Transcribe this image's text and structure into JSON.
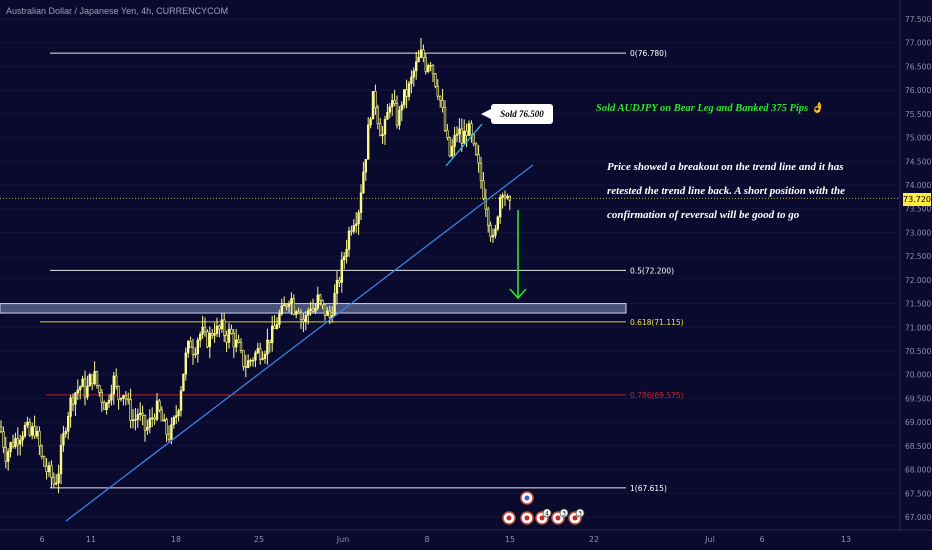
{
  "header": {
    "title": "Australian Dollar / Japanese Yen, 4h, CURRENCYCOM"
  },
  "annotations": {
    "green_note": "Sold AUDJPY on Bear Leg and Banked 375 Pips 👌",
    "callout": "Sold 76.500",
    "analysis": "Price showed a breakout on the trend line and it has retested the trend line back. A short position with the confirmation of reversal will be good to go"
  },
  "current_price": "73.720",
  "colors": {
    "background": "#0a0a2e",
    "candle_up": "#fafa8c",
    "candle_down": "#fafa8c",
    "trend_line": "#3f7fe0",
    "fib_white": "#ffffff",
    "fib_yellow": "#f0e442",
    "fib_red": "#c0282c",
    "arrow": "#29e629",
    "zone": "#9aaad8",
    "price_line": "#ffeb3b"
  },
  "chart_data": {
    "type": "candlestick",
    "symbol": "AUDJPY",
    "interval": "4h",
    "y_axis": {
      "range": [
        66.9,
        77.6
      ],
      "ticks": [
        "67.000",
        "67.500",
        "68.000",
        "68.500",
        "69.000",
        "69.500",
        "70.000",
        "70.500",
        "71.000",
        "71.500",
        "72.000",
        "72.500",
        "73.000",
        "73.500",
        "74.000",
        "74.500",
        "75.000",
        "75.500",
        "76.000",
        "76.500",
        "77.000",
        "77.500"
      ]
    },
    "x_axis": {
      "ticks": [
        "6",
        "11",
        "18",
        "25",
        "Jun",
        "8",
        "15",
        "22",
        "Jul",
        "6",
        "13"
      ]
    },
    "fib_levels": [
      {
        "label": "0(76.780)",
        "value": 76.78,
        "color": "white"
      },
      {
        "label": "0.5(72.200)",
        "value": 72.2,
        "color": "white"
      },
      {
        "label": "0.618(71.115)",
        "value": 71.115,
        "color": "yellow"
      },
      {
        "label": "0.786(69.575)",
        "value": 69.575,
        "color": "red"
      },
      {
        "label": "1(67.615)",
        "value": 67.615,
        "color": "white"
      }
    ],
    "support_zone": [
      71.3,
      71.5
    ],
    "path": [
      [
        0,
        68.9
      ],
      [
        3,
        68.6
      ],
      [
        6,
        68.3
      ],
      [
        10,
        68.5
      ],
      [
        14,
        68.6
      ],
      [
        18,
        68.7
      ],
      [
        22,
        68.8
      ],
      [
        26,
        68.9
      ],
      [
        30,
        68.7
      ],
      [
        34,
        68.9
      ],
      [
        38,
        68.6
      ],
      [
        42,
        68.2
      ],
      [
        46,
        68.0
      ],
      [
        50,
        67.9
      ],
      [
        54,
        67.7
      ],
      [
        58,
        67.9
      ],
      [
        62,
        68.5
      ],
      [
        66,
        69.0
      ],
      [
        70,
        69.4
      ],
      [
        74,
        69.6
      ],
      [
        78,
        69.7
      ],
      [
        82,
        69.8
      ],
      [
        86,
        69.6
      ],
      [
        90,
        69.9
      ],
      [
        94,
        70.0
      ],
      [
        98,
        69.7
      ],
      [
        102,
        69.5
      ],
      [
        106,
        69.3
      ],
      [
        110,
        69.7
      ],
      [
        114,
        69.9
      ],
      [
        118,
        69.5
      ],
      [
        122,
        69.7
      ],
      [
        126,
        69.5
      ],
      [
        130,
        69.2
      ],
      [
        134,
        69.0
      ],
      [
        138,
        69.2
      ],
      [
        142,
        69.0
      ],
      [
        146,
        68.8
      ],
      [
        150,
        69.0
      ],
      [
        154,
        69.2
      ],
      [
        158,
        69.3
      ],
      [
        162,
        69.0
      ],
      [
        166,
        68.8
      ],
      [
        170,
        68.7
      ],
      [
        174,
        69.0
      ],
      [
        178,
        69.3
      ],
      [
        182,
        69.9
      ],
      [
        186,
        70.4
      ],
      [
        190,
        70.7
      ],
      [
        194,
        70.5
      ],
      [
        198,
        70.8
      ],
      [
        202,
        70.9
      ],
      [
        206,
        70.7
      ],
      [
        210,
        70.8
      ],
      [
        214,
        71.0
      ],
      [
        218,
        70.9
      ],
      [
        222,
        71.0
      ],
      [
        226,
        70.8
      ],
      [
        230,
        70.9
      ],
      [
        234,
        70.7
      ],
      [
        238,
        70.6
      ],
      [
        242,
        70.3
      ],
      [
        246,
        70.2
      ],
      [
        250,
        70.3
      ],
      [
        254,
        70.4
      ],
      [
        258,
        70.5
      ],
      [
        262,
        70.5
      ],
      [
        266,
        70.6
      ],
      [
        270,
        70.8
      ],
      [
        274,
        70.9
      ],
      [
        278,
        71.2
      ],
      [
        282,
        71.3
      ],
      [
        286,
        71.5
      ],
      [
        290,
        71.7
      ],
      [
        294,
        71.4
      ],
      [
        298,
        71.5
      ],
      [
        302,
        71.1
      ],
      [
        306,
        71.2
      ],
      [
        310,
        71.5
      ],
      [
        314,
        71.3
      ],
      [
        318,
        71.6
      ],
      [
        322,
        71.4
      ],
      [
        326,
        71.3
      ],
      [
        330,
        71.2
      ],
      [
        334,
        71.6
      ],
      [
        338,
        71.9
      ],
      [
        342,
        72.3
      ],
      [
        346,
        72.7
      ],
      [
        350,
        73.1
      ],
      [
        354,
        73.3
      ],
      [
        358,
        73.4
      ],
      [
        362,
        74.1
      ],
      [
        366,
        74.7
      ],
      [
        370,
        75.5
      ],
      [
        374,
        75.9
      ],
      [
        378,
        75.4
      ],
      [
        382,
        75.0
      ],
      [
        386,
        75.3
      ],
      [
        390,
        75.8
      ],
      [
        394,
        75.6
      ],
      [
        398,
        75.3
      ],
      [
        402,
        75.8
      ],
      [
        406,
        75.9
      ],
      [
        410,
        76.1
      ],
      [
        414,
        76.4
      ],
      [
        418,
        76.6
      ],
      [
        422,
        76.8
      ],
      [
        426,
        76.5
      ],
      [
        430,
        76.7
      ],
      [
        434,
        76.3
      ],
      [
        438,
        76.0
      ],
      [
        442,
        75.6
      ],
      [
        446,
        75.0
      ],
      [
        450,
        74.6
      ],
      [
        454,
        74.9
      ],
      [
        458,
        75.2
      ],
      [
        462,
        74.9
      ],
      [
        466,
        75.2
      ],
      [
        470,
        75.1
      ],
      [
        474,
        74.7
      ],
      [
        478,
        74.4
      ],
      [
        482,
        74.0
      ],
      [
        486,
        73.6
      ],
      [
        490,
        73.1
      ],
      [
        494,
        72.7
      ],
      [
        498,
        73.5
      ],
      [
        502,
        74.0
      ],
      [
        506,
        73.7
      ],
      [
        510,
        73.5
      ]
    ]
  }
}
